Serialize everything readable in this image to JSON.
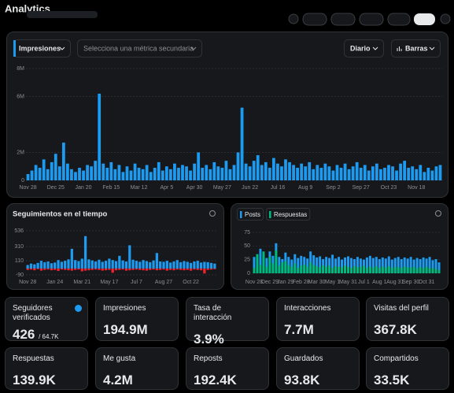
{
  "header": {
    "title": "Analytics"
  },
  "controls": {
    "primary_metric": "Impresiones",
    "secondary_metric": "Selecciona una métrica secundaria",
    "interval": "Diario",
    "chart_style": "Barras"
  },
  "chart_data": [
    {
      "type": "bar",
      "grid": true,
      "categories": [
        "Nov 28",
        null,
        null,
        null,
        null,
        null,
        null,
        "Dec 25",
        null,
        null,
        null,
        null,
        null,
        null,
        "Jan 20",
        null,
        null,
        null,
        null,
        null,
        null,
        "Feb 15",
        null,
        null,
        null,
        null,
        null,
        null,
        "Mar 12",
        null,
        null,
        null,
        null,
        null,
        null,
        "Apr 5",
        null,
        null,
        null,
        null,
        null,
        null,
        "Apr 30",
        null,
        null,
        null,
        null,
        null,
        null,
        "May 27",
        null,
        null,
        null,
        null,
        null,
        null,
        "Jun 22",
        null,
        null,
        null,
        null,
        null,
        null,
        "Jul 16",
        null,
        null,
        null,
        null,
        null,
        null,
        "Aug 9",
        null,
        null,
        null,
        null,
        null,
        null,
        "Sep 2",
        null,
        null,
        null,
        null,
        null,
        null,
        "Sep 27",
        null,
        null,
        null,
        null,
        null,
        null,
        "Oct 23",
        null,
        null,
        null,
        null,
        null,
        null,
        "Nov 18",
        null,
        null,
        null,
        null,
        null,
        null
      ],
      "series": [
        {
          "color": "#1d9bf0",
          "values": [
            450000,
            700000,
            1100000,
            900000,
            1500000,
            800000,
            1300000,
            1900000,
            1000000,
            2700000,
            1200000,
            800000,
            600000,
            900000,
            700000,
            1100000,
            1000000,
            1400000,
            6200000,
            1200000,
            900000,
            1300000,
            800000,
            1100000,
            600000,
            1000000,
            700000,
            1200000,
            900000,
            800000,
            1100000,
            600000,
            900000,
            1300000,
            700000,
            1000000,
            800000,
            1200000,
            900000,
            1100000,
            1000000,
            700000,
            1200000,
            2000000,
            900000,
            1100000,
            800000,
            1300000,
            1000000,
            900000,
            1400000,
            800000,
            1100000,
            2000000,
            5200000,
            1200000,
            1000000,
            1400000,
            1800000,
            1100000,
            1300000,
            900000,
            1600000,
            1200000,
            1000000,
            1500000,
            1300000,
            1100000,
            900000,
            1200000,
            1000000,
            1300000,
            800000,
            1100000,
            900000,
            1200000,
            1000000,
            700000,
            1100000,
            900000,
            1200000,
            800000,
            1000000,
            1300000,
            900000,
            1100000,
            700000,
            1000000,
            1200000,
            800000,
            900000,
            1100000,
            1000000,
            700000,
            1200000,
            1400000,
            900000,
            1000000,
            800000,
            1100000,
            600000,
            900000,
            700000,
            1000000,
            1100000
          ]
        }
      ],
      "ylim": [
        0,
        8000000
      ],
      "yticks": [
        {
          "value": 0,
          "label": "0"
        },
        {
          "value": 2000000,
          "label": "2M"
        },
        {
          "value": 6000000,
          "label": "6M"
        },
        {
          "value": 8000000,
          "label": "8M"
        }
      ]
    },
    {
      "type": "bar",
      "title": "Seguimientos en el tiempo",
      "grid": true,
      "categories": [
        "Nov 28",
        null,
        null,
        null,
        null,
        null,
        null,
        null,
        "Jan 24",
        null,
        null,
        null,
        null,
        null,
        null,
        null,
        "Mar 21",
        null,
        null,
        null,
        null,
        null,
        null,
        null,
        "May 17",
        null,
        null,
        null,
        null,
        null,
        null,
        null,
        "Jul 7",
        null,
        null,
        null,
        null,
        null,
        null,
        null,
        "Aug 27",
        null,
        null,
        null,
        null,
        null,
        null,
        null,
        "Oct 22",
        null,
        null,
        null,
        null,
        null,
        null,
        null
      ],
      "series": [
        {
          "color": "#1d9bf0",
          "values": [
            50,
            70,
            60,
            80,
            110,
            90,
            100,
            75,
            85,
            120,
            95,
            110,
            130,
            280,
            120,
            105,
            140,
            460,
            130,
            115,
            100,
            125,
            95,
            110,
            140,
            120,
            105,
            180,
            115,
            100,
            330,
            125,
            110,
            95,
            120,
            105,
            90,
            115,
            220,
            100,
            95,
            110,
            85,
            100,
            120,
            90,
            105,
            95,
            80,
            100,
            110,
            85,
            95,
            90,
            80,
            70
          ]
        },
        {
          "color": "#f4212e",
          "values": [
            -20,
            -15,
            -25,
            -10,
            -30,
            -20,
            -15,
            -25,
            -20,
            -35,
            -15,
            -20,
            -25,
            -30,
            -20,
            -15,
            -40,
            -30,
            -25,
            -20,
            -15,
            -20,
            -30,
            -25,
            -20,
            -60,
            -25,
            -20,
            -15,
            -30,
            -25,
            -20,
            -15,
            -20,
            -25,
            -30,
            -20,
            -15,
            -25,
            -20,
            -15,
            -30,
            -20,
            -25,
            -15,
            -20,
            -25,
            -20,
            -30,
            -15,
            -20,
            -25,
            -70,
            -20,
            -15,
            -10
          ]
        }
      ],
      "ylim": [
        -90,
        536
      ],
      "yticks": [
        -90,
        110,
        310,
        536
      ]
    },
    {
      "type": "bar",
      "grid": true,
      "categories": [
        "Nov 28",
        null,
        null,
        null,
        null,
        "Dec 29",
        null,
        null,
        null,
        null,
        "Jan 29",
        null,
        null,
        null,
        null,
        "Feb 28",
        null,
        null,
        null,
        null,
        "Mar 30",
        null,
        null,
        null,
        null,
        "May 1",
        null,
        null,
        null,
        null,
        "May 31",
        null,
        null,
        null,
        null,
        "Jul 1",
        null,
        null,
        null,
        null,
        "Aug 1",
        null,
        null,
        null,
        null,
        "Aug 31",
        null,
        null,
        null,
        null,
        "Sep 30",
        null,
        null,
        null,
        null,
        "Oct 31",
        null,
        null,
        null,
        null
      ],
      "series": [
        {
          "name": "Posts",
          "color": "#1d9bf0",
          "values": [
            30,
            25,
            45,
            35,
            28,
            40,
            32,
            55,
            30,
            26,
            38,
            30,
            25,
            35,
            28,
            32,
            30,
            27,
            40,
            33,
            29,
            31,
            26,
            30,
            28,
            34,
            27,
            30,
            25,
            29,
            31,
            28,
            26,
            30,
            27,
            25,
            29,
            32,
            28,
            30,
            26,
            29,
            27,
            31,
            25,
            28,
            30,
            26,
            29,
            27,
            30,
            25,
            28,
            26,
            29,
            27,
            30,
            24,
            26,
            20
          ]
        },
        {
          "name": "Respuestas",
          "color": "#00ba7c",
          "values": [
            10,
            35,
            15,
            40,
            12,
            30,
            18,
            42,
            14,
            20,
            22,
            15,
            12,
            18,
            10,
            14,
            16,
            12,
            20,
            15,
            13,
            11,
            15,
            12,
            14,
            10,
            13,
            12,
            11,
            14,
            12,
            10,
            13,
            11,
            12,
            14,
            10,
            12,
            11,
            13,
            10,
            12,
            11,
            13,
            10,
            12,
            11,
            10,
            12,
            11,
            10,
            12,
            9,
            11,
            10,
            12,
            9,
            10,
            8,
            6
          ]
        }
      ],
      "ylim": [
        0,
        75
      ],
      "yticks": [
        0,
        25,
        50,
        75
      ]
    }
  ],
  "stats": [
    {
      "label": "Seguidores verificados",
      "value": "426",
      "total": "/ 64.7K"
    },
    {
      "label": "Impresiones",
      "value": "194.9M"
    },
    {
      "label": "Tasa de interacción",
      "value": "3.9%"
    },
    {
      "label": "Interacciones",
      "value": "7.7M"
    },
    {
      "label": "Visitas del perfil",
      "value": "367.8K"
    },
    {
      "label": "Respuestas",
      "value": "139.9K"
    },
    {
      "label": "Me gusta",
      "value": "4.2M"
    },
    {
      "label": "Reposts",
      "value": "192.4K"
    },
    {
      "label": "Guardados",
      "value": "93.8K"
    },
    {
      "label": "Compartidos",
      "value": "33.5K"
    }
  ]
}
